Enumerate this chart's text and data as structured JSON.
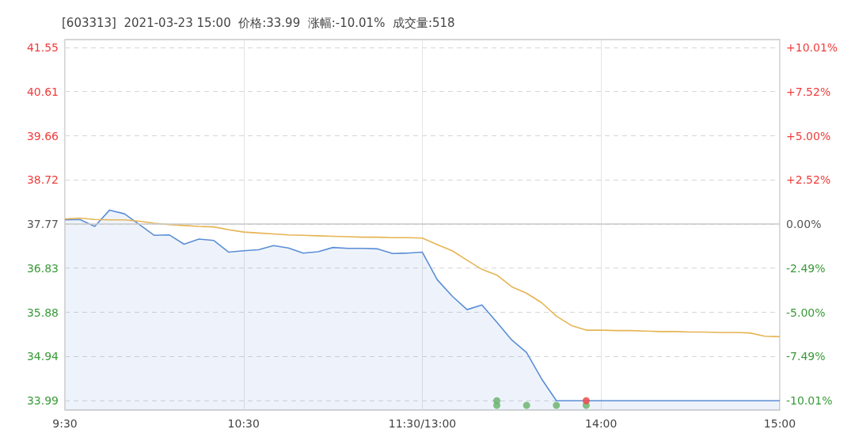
{
  "chart_data": {
    "type": "area",
    "title": "[603313]  2021-03-23 15:00  价格:33.99  涨幅:-10.01%  成交量:518",
    "categories": [
      "9:30",
      null,
      null,
      null,
      null,
      null,
      null,
      null,
      null,
      null,
      null,
      null,
      "10:30",
      null,
      null,
      null,
      null,
      null,
      null,
      null,
      null,
      null,
      null,
      null,
      "11:30/13:00",
      null,
      null,
      null,
      null,
      null,
      null,
      null,
      null,
      null,
      null,
      null,
      "14:00",
      null,
      null,
      null,
      null,
      null,
      null,
      null,
      null,
      null,
      null,
      null,
      "15:00"
    ],
    "ylim": [
      33.79,
      41.72
    ],
    "yticks": [
      33.99,
      34.94,
      35.88,
      36.83,
      37.77,
      38.72,
      39.66,
      40.61,
      41.55
    ],
    "y2lim": [
      -10.54,
      10.46
    ],
    "y2ticks": [
      {
        "value": -10.01,
        "label": "-10.01%"
      },
      {
        "value": -7.49,
        "label": "-7.49%"
      },
      {
        "value": -5.0,
        "label": "-5.00%"
      },
      {
        "value": -2.49,
        "label": "-2.49%"
      },
      {
        "value": 0,
        "label": "0.00%"
      },
      {
        "value": 2.52,
        "label": "+2.52%"
      },
      {
        "value": 5.0,
        "label": "+5.00%"
      },
      {
        "value": 7.52,
        "label": "+7.52%"
      },
      {
        "value": 10.01,
        "label": "+10.01%"
      }
    ],
    "grid": true,
    "ref_lines": [
      {
        "axis": "y",
        "value": 37.77,
        "color": "#c8c8c8"
      }
    ],
    "series": [
      {
        "color": "#5b8ed6",
        "values": [
          37.86,
          37.87,
          37.72,
          38.07,
          37.99,
          37.76,
          37.53,
          37.54,
          37.34,
          37.45,
          37.42,
          37.17,
          37.2,
          37.22,
          37.31,
          37.26,
          37.15,
          37.18,
          37.27,
          37.25,
          37.25,
          37.24,
          37.14,
          37.15,
          37.17,
          36.58,
          36.23,
          35.94,
          36.04,
          35.67,
          35.29,
          35.02,
          34.46,
          33.99,
          33.99,
          33.99,
          33.99,
          33.99,
          33.99,
          33.99,
          33.99,
          33.99,
          33.99,
          33.99,
          33.99,
          33.99,
          33.99,
          33.99,
          33.99
        ]
      },
      {
        "type": "line",
        "color": "#e6b453",
        "values": [
          37.88,
          37.9,
          37.87,
          37.86,
          37.86,
          37.83,
          37.79,
          37.76,
          37.74,
          37.72,
          37.71,
          37.65,
          37.6,
          37.58,
          37.56,
          37.54,
          37.53,
          37.52,
          37.51,
          37.5,
          37.49,
          37.49,
          37.48,
          37.48,
          37.47,
          37.33,
          37.2,
          37.0,
          36.8,
          36.68,
          36.43,
          36.29,
          36.09,
          35.8,
          35.6,
          35.5,
          35.5,
          35.49,
          35.49,
          35.48,
          35.47,
          35.47,
          35.46,
          35.46,
          35.45,
          35.45,
          35.44,
          35.37,
          35.36
        ]
      },
      {
        "type": "scatter",
        "color": "#6fb46f",
        "values": [
          null,
          null,
          null,
          null,
          null,
          null,
          null,
          null,
          null,
          null,
          null,
          null,
          null,
          null,
          null,
          null,
          null,
          null,
          null,
          null,
          null,
          null,
          null,
          null,
          null,
          null,
          null,
          null,
          null,
          33.99,
          null,
          null,
          null,
          null,
          null,
          null,
          null,
          null,
          null,
          null,
          null,
          null,
          null,
          null,
          null,
          null,
          null,
          null,
          null
        ]
      },
      {
        "type": "scatter",
        "color": "#6fb46f",
        "values": [
          null,
          null,
          null,
          null,
          null,
          null,
          null,
          null,
          null,
          null,
          null,
          null,
          null,
          null,
          null,
          null,
          null,
          null,
          null,
          null,
          null,
          null,
          null,
          null,
          null,
          null,
          null,
          null,
          null,
          33.89,
          null,
          33.89,
          null,
          33.89,
          null,
          33.89,
          null,
          null,
          null,
          null,
          null,
          null,
          null,
          null,
          null,
          null,
          null,
          null,
          null
        ]
      },
      {
        "type": "scatter",
        "color": "#ee4b4b",
        "values": [
          null,
          null,
          null,
          null,
          null,
          null,
          null,
          null,
          null,
          null,
          null,
          null,
          null,
          null,
          null,
          null,
          null,
          null,
          null,
          null,
          null,
          null,
          null,
          null,
          null,
          null,
          null,
          null,
          null,
          null,
          null,
          null,
          null,
          null,
          null,
          33.99,
          null,
          null,
          null,
          null,
          null,
          null,
          null,
          null,
          null,
          null,
          null,
          null,
          null
        ]
      }
    ]
  }
}
